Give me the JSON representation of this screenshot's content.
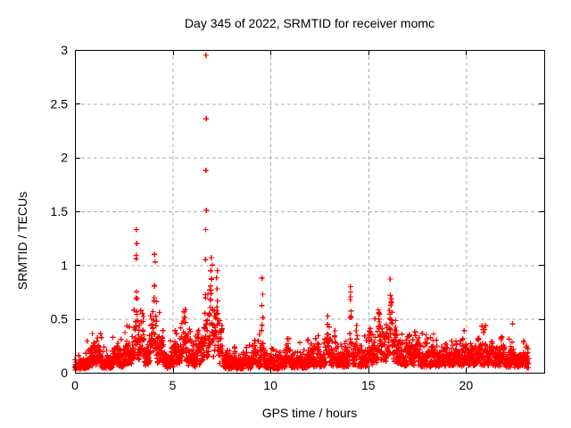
{
  "chart_data": {
    "type": "scatter",
    "title": "Day 345 of 2022, SRMTID for receiver momc",
    "xlabel": "GPS time / hours",
    "ylabel": "SRMTID / TECUs",
    "xlim": [
      0,
      24
    ],
    "ylim": [
      0,
      3
    ],
    "xtick_values": [
      0,
      5,
      10,
      15,
      20
    ],
    "xtick_labels": [
      "0",
      "5",
      "10",
      "15",
      "20"
    ],
    "ytick_values": [
      0,
      0.5,
      1,
      1.5,
      2,
      2.5,
      3
    ],
    "ytick_labels": [
      "0",
      "0.5",
      "1",
      "1.5",
      "2",
      "2.5",
      "3"
    ],
    "grid_x": [
      5,
      10,
      15,
      20
    ],
    "grid_y": [
      0.5,
      1,
      1.5,
      2,
      2.5
    ],
    "grid_style": "dashed",
    "grid_color": "#b0b0b0",
    "border_color": "#000000",
    "marker_glyph": "plus",
    "marker_color": "#ff0000",
    "marker_size_px": 7,
    "legend": null,
    "sampling_points_per_hour": 120,
    "t_start": 0,
    "t_end": 23.2,
    "seed": 7,
    "baseline_envelope": [
      [
        0,
        0.06
      ],
      [
        0.4,
        0.09
      ],
      [
        0.9,
        0.16
      ],
      [
        1.15,
        0.2
      ],
      [
        1.5,
        0.1
      ],
      [
        1.8,
        0.11
      ],
      [
        2.1,
        0.17
      ],
      [
        2.4,
        0.12
      ],
      [
        2.7,
        0.19
      ],
      [
        3.0,
        0.25
      ],
      [
        3.2,
        0.28
      ],
      [
        3.35,
        0.3
      ],
      [
        3.6,
        0.15
      ],
      [
        3.9,
        0.25
      ],
      [
        4.1,
        0.3
      ],
      [
        4.35,
        0.22
      ],
      [
        4.7,
        0.1
      ],
      [
        5.0,
        0.15
      ],
      [
        5.3,
        0.2
      ],
      [
        5.6,
        0.25
      ],
      [
        5.9,
        0.15
      ],
      [
        6.2,
        0.15
      ],
      [
        6.55,
        0.25
      ],
      [
        6.8,
        0.3
      ],
      [
        7.05,
        0.38
      ],
      [
        7.3,
        0.3
      ],
      [
        7.6,
        0.12
      ],
      [
        8.0,
        0.1
      ],
      [
        8.4,
        0.08
      ],
      [
        8.8,
        0.1
      ],
      [
        9.2,
        0.12
      ],
      [
        9.55,
        0.16
      ],
      [
        9.9,
        0.1
      ],
      [
        10.3,
        0.08
      ],
      [
        10.7,
        0.12
      ],
      [
        10.95,
        0.15
      ],
      [
        11.2,
        0.09
      ],
      [
        11.6,
        0.11
      ],
      [
        12.0,
        0.13
      ],
      [
        12.4,
        0.13
      ],
      [
        12.8,
        0.17
      ],
      [
        13.1,
        0.18
      ],
      [
        13.5,
        0.14
      ],
      [
        13.9,
        0.15
      ],
      [
        14.15,
        0.18
      ],
      [
        14.5,
        0.14
      ],
      [
        14.9,
        0.16
      ],
      [
        15.2,
        0.2
      ],
      [
        15.55,
        0.25
      ],
      [
        15.9,
        0.28
      ],
      [
        16.15,
        0.3
      ],
      [
        16.5,
        0.22
      ],
      [
        16.8,
        0.17
      ],
      [
        17.1,
        0.18
      ],
      [
        17.45,
        0.2
      ],
      [
        17.8,
        0.14
      ],
      [
        18.2,
        0.15
      ],
      [
        18.6,
        0.16
      ],
      [
        19.0,
        0.16
      ],
      [
        19.4,
        0.17
      ],
      [
        19.8,
        0.17
      ],
      [
        20.2,
        0.18
      ],
      [
        20.6,
        0.19
      ],
      [
        21.0,
        0.18
      ],
      [
        21.4,
        0.17
      ],
      [
        21.8,
        0.16
      ],
      [
        22.2,
        0.15
      ],
      [
        22.6,
        0.14
      ],
      [
        23.0,
        0.12
      ],
      [
        23.2,
        0.11
      ]
    ],
    "spikes": [
      [
        0.95,
        0.1,
        0.34
      ],
      [
        1.2,
        0.06,
        0.3
      ],
      [
        2.05,
        0.07,
        0.3
      ],
      [
        2.65,
        0.07,
        0.34
      ],
      [
        3.0,
        0.05,
        0.45
      ],
      [
        3.15,
        0.04,
        1.3
      ],
      [
        3.45,
        0.07,
        0.7
      ],
      [
        3.95,
        0.06,
        0.72
      ],
      [
        4.08,
        0.05,
        1.08
      ],
      [
        4.45,
        0.05,
        0.45
      ],
      [
        5.1,
        0.06,
        0.4
      ],
      [
        5.6,
        0.05,
        0.78
      ],
      [
        5.9,
        0.04,
        0.42
      ],
      [
        6.3,
        0.05,
        0.45
      ],
      [
        6.68,
        0.03,
        1.45
      ],
      [
        6.95,
        0.09,
        1.0
      ],
      [
        7.25,
        0.06,
        0.9
      ],
      [
        7.5,
        0.04,
        0.55
      ],
      [
        8.15,
        0.05,
        0.25
      ],
      [
        8.75,
        0.05,
        0.28
      ],
      [
        9.2,
        0.05,
        0.35
      ],
      [
        9.58,
        0.035,
        0.86
      ],
      [
        10.05,
        0.04,
        0.3
      ],
      [
        10.9,
        0.06,
        0.38
      ],
      [
        11.5,
        0.05,
        0.28
      ],
      [
        12.05,
        0.05,
        0.32
      ],
      [
        12.45,
        0.05,
        0.35
      ],
      [
        12.95,
        0.08,
        0.56
      ],
      [
        13.3,
        0.05,
        0.4
      ],
      [
        14.1,
        0.04,
        0.78
      ],
      [
        14.4,
        0.05,
        0.48
      ],
      [
        15.1,
        0.06,
        0.5
      ],
      [
        15.55,
        0.07,
        0.7
      ],
      [
        16.15,
        0.09,
        0.85
      ],
      [
        16.4,
        0.05,
        0.6
      ],
      [
        17.1,
        0.05,
        0.4
      ],
      [
        17.45,
        0.06,
        0.45
      ],
      [
        18.3,
        0.05,
        0.32
      ],
      [
        19.0,
        0.05,
        0.3
      ],
      [
        19.5,
        0.05,
        0.32
      ],
      [
        20.0,
        0.05,
        0.3
      ],
      [
        20.65,
        0.07,
        0.36
      ],
      [
        21.3,
        0.06,
        0.34
      ],
      [
        21.9,
        0.05,
        0.3
      ],
      [
        22.4,
        0.05,
        0.3
      ],
      [
        22.95,
        0.06,
        0.3
      ]
    ],
    "extreme_points": [
      [
        6.7,
        2.95
      ],
      [
        6.71,
        2.36
      ],
      [
        6.69,
        1.88
      ],
      [
        6.72,
        1.51
      ],
      [
        6.68,
        1.33
      ],
      [
        3.14,
        1.33
      ],
      [
        3.16,
        1.2
      ],
      [
        3.13,
        1.06
      ],
      [
        4.07,
        1.1
      ],
      [
        4.1,
        1.03
      ],
      [
        6.97,
        1.07
      ],
      [
        7.02,
        1.0
      ],
      [
        7.28,
        0.95
      ],
      [
        9.57,
        0.88
      ],
      [
        9.6,
        0.73
      ],
      [
        14.09,
        0.8
      ],
      [
        16.12,
        0.87
      ]
    ]
  }
}
